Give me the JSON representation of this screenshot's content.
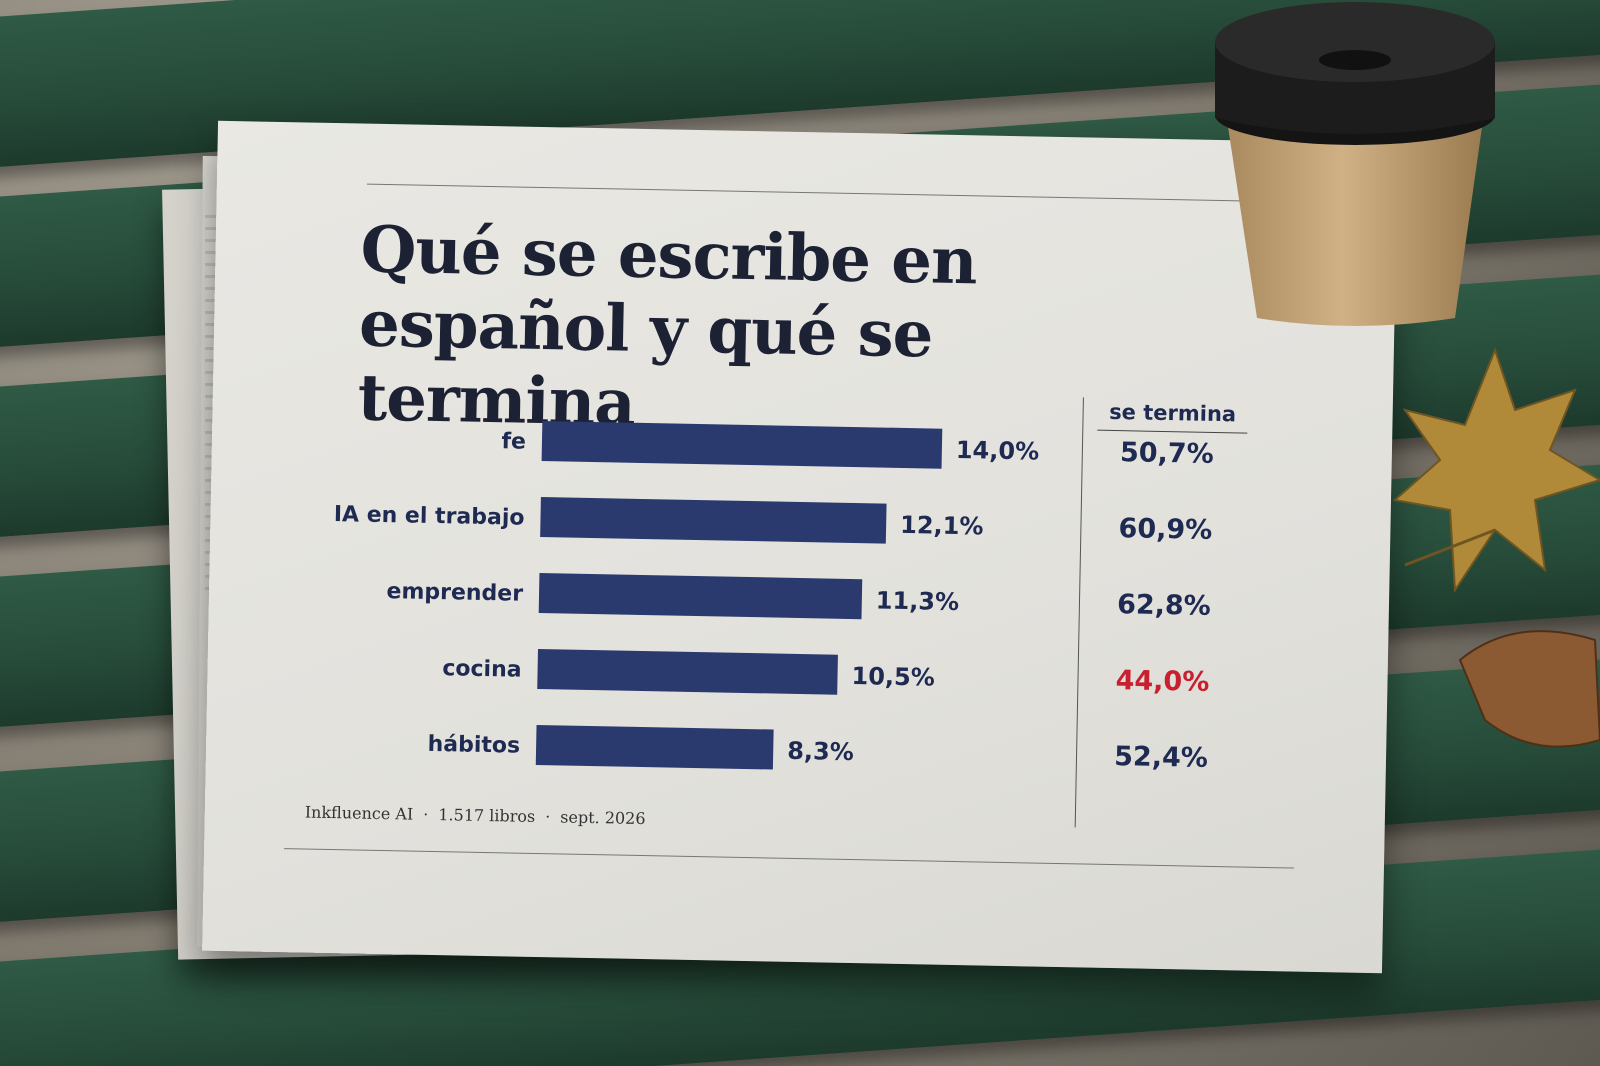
{
  "headline": "Qué se escribe en español y qué se termina",
  "right_column_header": "se termina",
  "footer": {
    "source": "Inkfluence AI",
    "books": "1.517 libros",
    "date": "sept. 2026"
  },
  "colors": {
    "bar": "#2b3a6e",
    "label": "#1f2a52",
    "highlight": "#c8202e",
    "bench": "#2f5a45"
  },
  "chart_data": {
    "type": "bar",
    "orientation": "horizontal",
    "title": "Qué se escribe en español y qué se termina",
    "categories": [
      "fe",
      "IA en el trabajo",
      "emprender",
      "cocina",
      "hábitos"
    ],
    "series": [
      {
        "values": [
          14.0,
          12.1,
          11.3,
          10.5,
          8.3
        ],
        "labels": [
          "14,0%",
          "12,1%",
          "11,3%",
          "10,5%",
          "8,3%"
        ]
      },
      {
        "name": "se termina",
        "values": [
          50.7,
          60.9,
          62.8,
          44.0,
          52.4
        ],
        "labels": [
          "50,7%",
          "60,9%",
          "62,8%",
          "44,0%",
          "52,4%"
        ],
        "highlight_index": 3
      }
    ],
    "xlim": [
      0,
      14.0
    ],
    "grid": false,
    "legend": "none"
  }
}
